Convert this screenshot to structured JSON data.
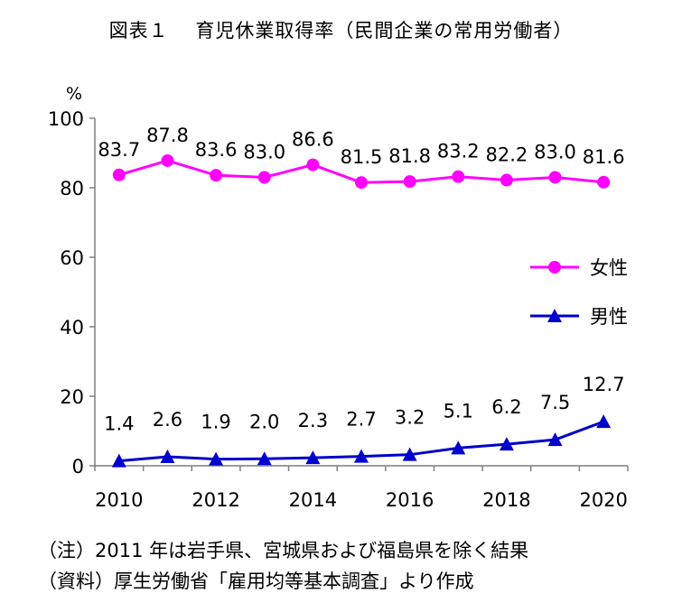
{
  "title": "図表１　 育児休業取得率（民間企業の常用労働者）",
  "notes": [
    "（注）2011 年は岩手県、宮城県および福島県を除く結果",
    "（資料）厚生労働省「雇用均等基本調査」より作成"
  ],
  "chart_data": {
    "type": "line",
    "x": [
      2010,
      2011,
      2012,
      2013,
      2014,
      2015,
      2016,
      2017,
      2018,
      2019,
      2020
    ],
    "x_tick_labels": [
      "2010",
      "2012",
      "2014",
      "2016",
      "2018",
      "2020"
    ],
    "y_unit": "%",
    "ylim": [
      0,
      100
    ],
    "y_ticks": [
      0,
      20,
      40,
      60,
      80,
      100
    ],
    "grid": false,
    "legend_position": "right",
    "series": [
      {
        "name": "女性",
        "color": "#FF00FF",
        "marker": "circle",
        "values": [
          83.7,
          87.8,
          83.6,
          83.0,
          86.6,
          81.5,
          81.8,
          83.2,
          82.2,
          83.0,
          81.6
        ],
        "labels": [
          "83.7",
          "87.8",
          "83.6",
          "83.0",
          "86.6",
          "81.5",
          "81.8",
          "83.2",
          "82.2",
          "83.0",
          "81.6"
        ]
      },
      {
        "name": "男性",
        "color": "#0000CC",
        "marker": "triangle",
        "values": [
          1.4,
          2.6,
          1.9,
          2.0,
          2.3,
          2.7,
          3.2,
          5.1,
          6.2,
          7.5,
          12.7
        ],
        "labels": [
          "1.4",
          "2.6",
          "1.9",
          "2.0",
          "2.3",
          "2.7",
          "3.2",
          "5.1",
          "6.2",
          "7.5",
          "12.7"
        ]
      }
    ]
  }
}
